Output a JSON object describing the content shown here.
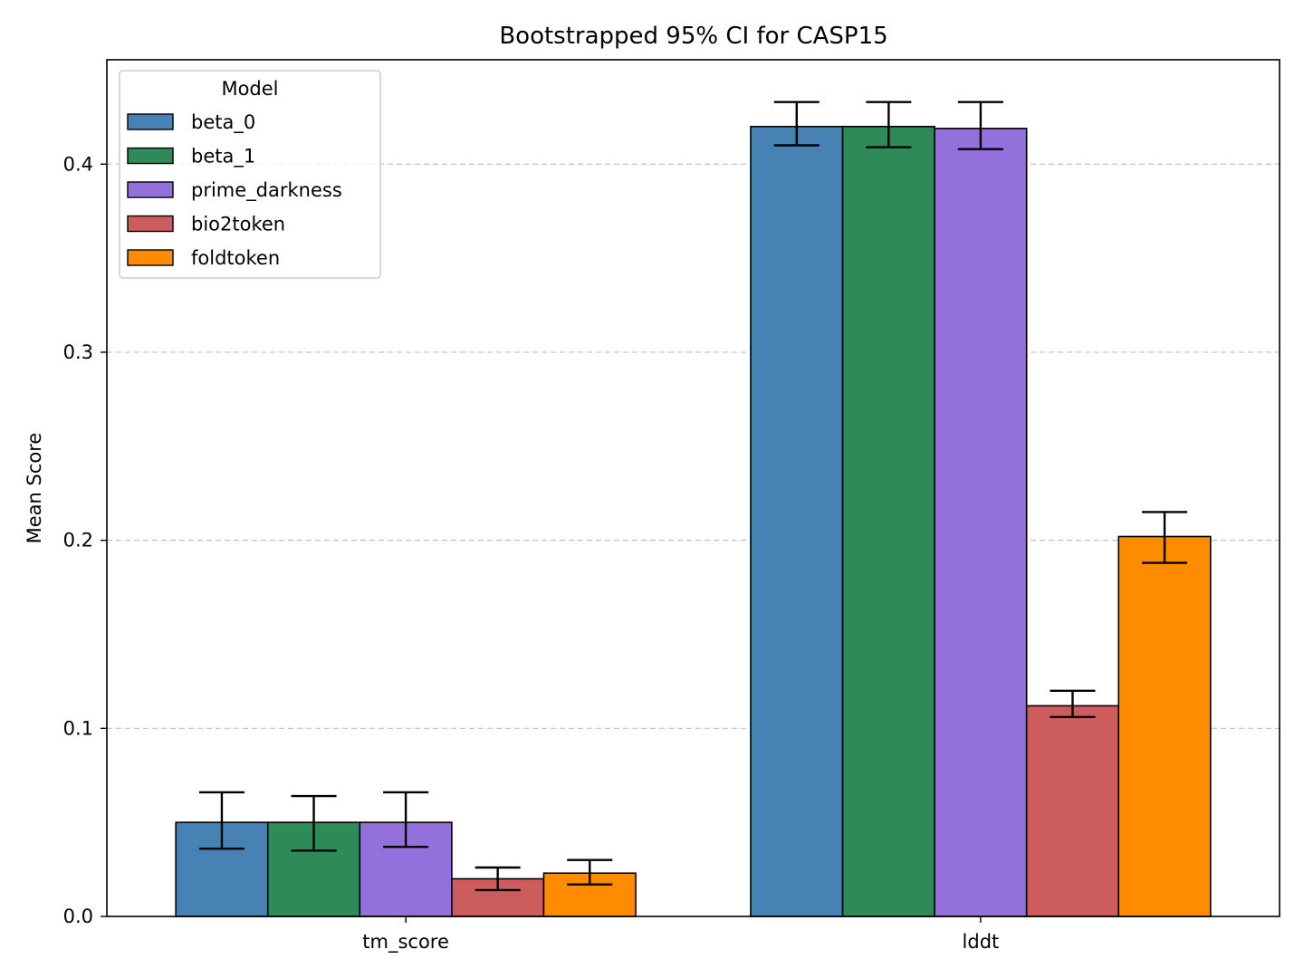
{
  "chart_data": {
    "type": "bar",
    "title": "Bootstrapped 95% CI for CASP15",
    "xlabel": "",
    "ylabel": "Mean Score",
    "categories": [
      "tm_score",
      "lddt"
    ],
    "ylim": [
      0,
      0.4555
    ],
    "yticks": [
      0.0,
      0.1,
      0.2,
      0.3,
      0.4
    ],
    "ytick_labels": [
      "0.0",
      "0.1",
      "0.2",
      "0.3",
      "0.4"
    ],
    "grid": "horizontal-dashed",
    "legend": {
      "title": "Model",
      "placement": "top-left"
    },
    "series": [
      {
        "name": "beta_0",
        "color": "#4682b4",
        "values": [
          0.05,
          0.42
        ],
        "ci_low": [
          0.036,
          0.41
        ],
        "ci_high": [
          0.066,
          0.433
        ]
      },
      {
        "name": "beta_1",
        "color": "#2e8b57",
        "values": [
          0.05,
          0.42
        ],
        "ci_low": [
          0.035,
          0.409
        ],
        "ci_high": [
          0.064,
          0.433
        ]
      },
      {
        "name": "prime_darkness",
        "color": "#9370db",
        "values": [
          0.05,
          0.419
        ],
        "ci_low": [
          0.037,
          0.408
        ],
        "ci_high": [
          0.066,
          0.433
        ]
      },
      {
        "name": "bio2token",
        "color": "#cd5c5c",
        "values": [
          0.02,
          0.112
        ],
        "ci_low": [
          0.014,
          0.106
        ],
        "ci_high": [
          0.026,
          0.12
        ]
      },
      {
        "name": "foldtoken",
        "color": "#ff8c00",
        "values": [
          0.023,
          0.202
        ],
        "ci_low": [
          0.017,
          0.188
        ],
        "ci_high": [
          0.03,
          0.215
        ]
      }
    ]
  }
}
